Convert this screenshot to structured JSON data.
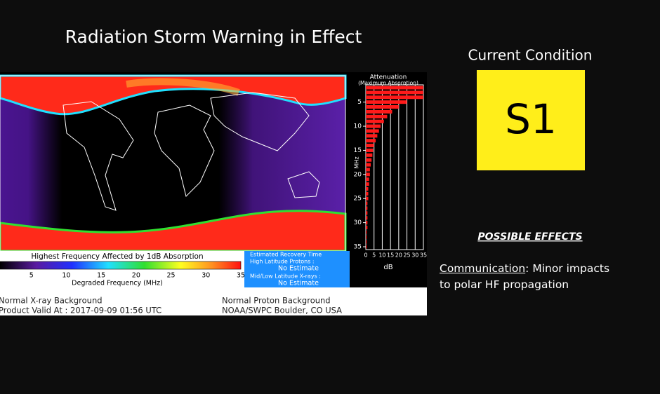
{
  "title": "Radiation Storm Warning in Effect",
  "map": {
    "colorbar_title": "Highest Frequency Affected by 1dB Absorption",
    "colorbar_ticks": [
      5,
      10,
      15,
      20,
      25,
      30,
      35
    ],
    "colorbar_range": [
      0,
      35
    ],
    "colorbar_label": "Degraded Frequency (MHz)"
  },
  "attenuation": {
    "title": "Attenuation",
    "subtitle": "(Maximum Absorption)",
    "ylabel": "MHz",
    "xlabel": "dB",
    "xlim": [
      0,
      35
    ],
    "xticks": [
      0,
      5,
      10,
      15,
      20,
      25,
      30,
      35
    ],
    "ylim": [
      2,
      35
    ],
    "yticks": [
      5,
      10,
      15,
      20,
      25,
      30,
      35
    ],
    "frequencies": [
      2,
      3,
      4,
      5,
      6,
      7,
      8,
      9,
      10,
      11,
      12,
      13,
      14,
      15,
      16,
      17,
      18,
      19,
      20,
      21,
      22,
      23,
      24,
      25,
      26,
      27,
      28,
      29,
      30,
      31,
      32,
      33,
      34,
      35
    ],
    "values": [
      35,
      35,
      35,
      25,
      20,
      16,
      13,
      11,
      9,
      8,
      7,
      6,
      5,
      4.5,
      4,
      3.5,
      3,
      2.5,
      2.5,
      2,
      2,
      1.5,
      1.5,
      1.5,
      1,
      1,
      1,
      1,
      1,
      1,
      0.5,
      0.5,
      0.5,
      0.5
    ],
    "color": "#ff1a1a"
  },
  "recovery": {
    "title": "Estimated Recovery Time",
    "items": [
      {
        "label": "High Latitude Protons :",
        "value": "No Estimate"
      },
      {
        "label": "Mid/Low Latitude X-rays :",
        "value": "No Estimate"
      }
    ]
  },
  "footer": {
    "left": [
      "Normal X-ray Background",
      "Product Valid At : 2017-09-09 01:56 UTC"
    ],
    "right": [
      "Normal Proton Background",
      "NOAA/SWPC Boulder, CO USA"
    ]
  },
  "condition": {
    "heading": "Current Condition",
    "level": "S1"
  },
  "effects": {
    "heading": "POSSIBLE EFFECTS",
    "category": "Communication",
    "description": ": Minor impacts to polar HF propagation"
  }
}
